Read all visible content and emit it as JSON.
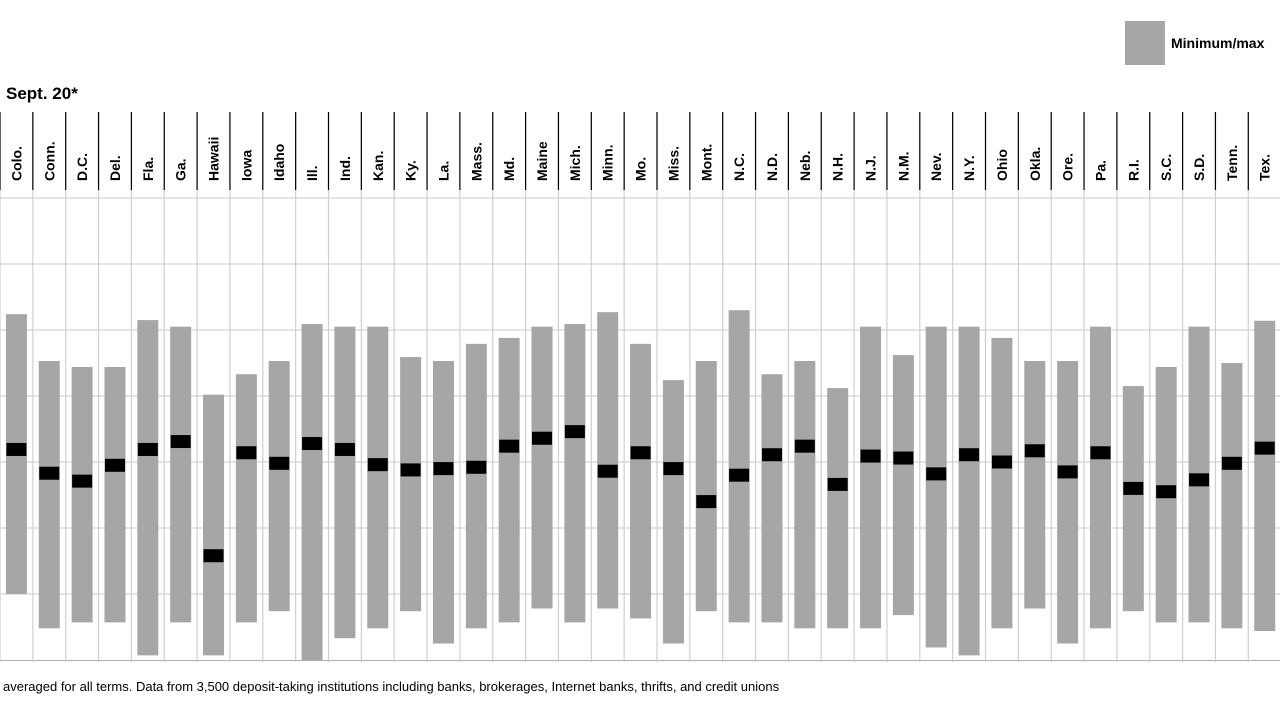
{
  "chart_data": {
    "type": "range",
    "header": "Sept. 20*",
    "footnote": "averaged for all terms. Data from 3,500 deposit-taking institutions including banks, brokerages, Internet banks, thrifts, and credit unions",
    "legend": [
      {
        "label": "Minimum/max",
        "color": "#a6a6a6",
        "kind": "range"
      }
    ],
    "ylim": [
      0,
      7
    ],
    "categories": [
      "Colo.",
      "Conn.",
      "D.C.",
      "Del.",
      "Fla.",
      "Ga.",
      "Hawaii",
      "Iowa",
      "Idaho",
      "Ill.",
      "Ind.",
      "Kan.",
      "Ky.",
      "La.",
      "Mass.",
      "Md.",
      "Maine",
      "Mich.",
      "Minn.",
      "Mo.",
      "Miss.",
      "Mont.",
      "N.C.",
      "N.D.",
      "Neb.",
      "N.H.",
      "N.J.",
      "N.M.",
      "Nev.",
      "N.Y.",
      "Ohio",
      "Okla.",
      "Ore.",
      "Pa.",
      "R.I.",
      "S.C.",
      "S.D.",
      "Tenn.",
      "Tex."
    ],
    "series": [
      {
        "name": "max",
        "values": [
          5.24,
          4.53,
          4.44,
          4.44,
          5.15,
          5.05,
          4.02,
          4.33,
          4.53,
          5.09,
          5.05,
          5.05,
          4.59,
          4.53,
          4.79,
          4.88,
          5.05,
          5.09,
          5.27,
          4.79,
          4.24,
          4.53,
          5.3,
          4.33,
          4.53,
          4.12,
          5.05,
          4.62,
          5.05,
          5.05,
          4.88,
          4.53,
          4.53,
          5.05,
          4.15,
          4.44,
          5.05,
          4.5,
          5.14
        ]
      },
      {
        "name": "min",
        "values": [
          1.0,
          0.48,
          0.57,
          0.57,
          0.07,
          0.57,
          0.07,
          0.57,
          0.74,
          0.0,
          0.33,
          0.48,
          0.74,
          0.25,
          0.48,
          0.57,
          0.78,
          0.57,
          0.78,
          0.63,
          0.25,
          0.74,
          0.57,
          0.57,
          0.48,
          0.48,
          0.48,
          0.68,
          0.19,
          0.07,
          0.48,
          0.78,
          0.25,
          0.48,
          0.74,
          0.57,
          0.57,
          0.48,
          0.44
        ]
      },
      {
        "name": "average",
        "values": [
          3.19,
          2.83,
          2.71,
          2.95,
          3.19,
          3.31,
          1.58,
          3.14,
          2.98,
          3.28,
          3.19,
          2.96,
          2.88,
          2.9,
          2.92,
          3.24,
          3.36,
          3.46,
          2.86,
          3.14,
          2.9,
          2.4,
          2.8,
          3.11,
          3.24,
          2.66,
          3.09,
          3.06,
          2.82,
          3.11,
          3.0,
          3.17,
          2.85,
          3.14,
          2.6,
          2.55,
          2.73,
          2.98,
          3.21
        ]
      }
    ]
  }
}
